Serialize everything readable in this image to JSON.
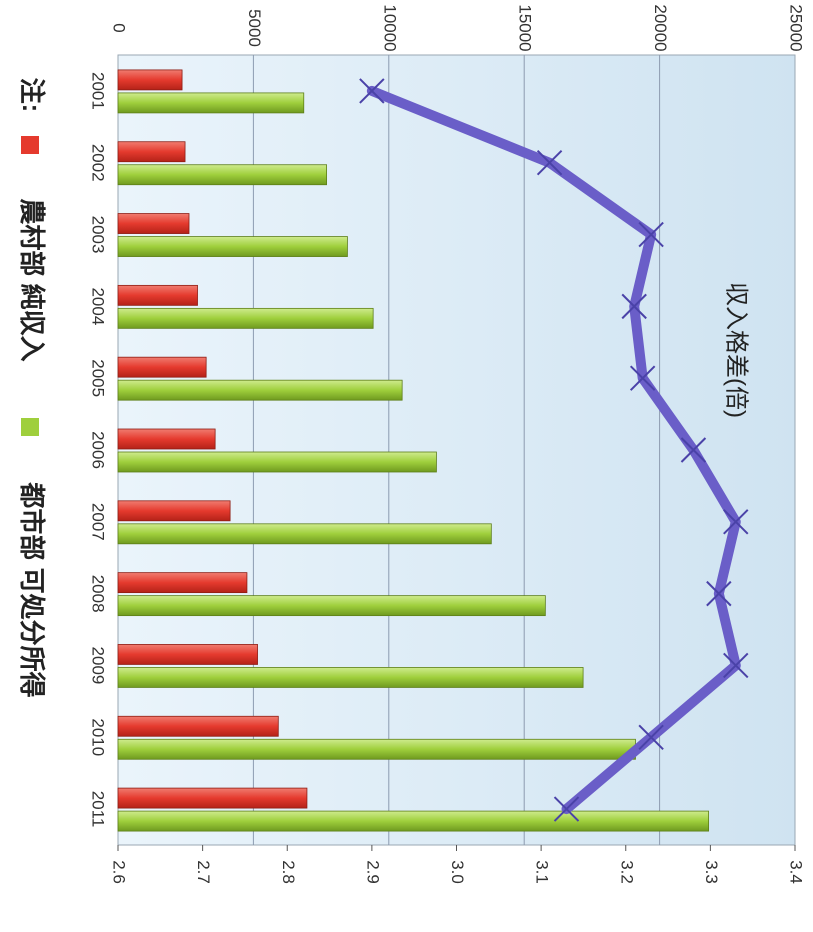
{
  "chart_data": {
    "type": "bar",
    "categories": [
      "2001",
      "2002",
      "2003",
      "2004",
      "2005",
      "2006",
      "2007",
      "2008",
      "2009",
      "2010",
      "2011"
    ],
    "series": [
      {
        "name": "農村部 純収入",
        "axis": "primary",
        "color": "#e53a2e",
        "values": [
          2366,
          2476,
          2622,
          2936,
          3255,
          3587,
          4140,
          4761,
          5153,
          5919,
          6977
        ]
      },
      {
        "name": "都市部 可処分所得",
        "axis": "primary",
        "color": "#9fcf3c",
        "values": [
          6860,
          7703,
          8472,
          9422,
          10493,
          11759,
          13786,
          15781,
          17175,
          19109,
          21810
        ]
      },
      {
        "name": "収入格差(倍)",
        "axis": "secondary",
        "type": "line",
        "color": "#6a5ec8",
        "values": [
          2.9,
          3.11,
          3.23,
          3.21,
          3.22,
          3.28,
          3.33,
          3.31,
          3.33,
          3.23,
          3.13
        ]
      }
    ],
    "primary_axis": {
      "range": [
        0,
        25000
      ],
      "ticks": [
        "0",
        "5000",
        "10000",
        "15000",
        "20000",
        "25000"
      ]
    },
    "secondary_axis": {
      "range": [
        2.6,
        3.4
      ],
      "ticks": [
        "2.6",
        "2.7",
        "2.8",
        "2.9",
        "3.0",
        "3.1",
        "3.2",
        "3.3",
        "3.4"
      ]
    },
    "line_label": "収入格差(倍)",
    "legend": {
      "prefix": "注:",
      "items": [
        "農村部 純収入",
        "都市部 可処分所得"
      ],
      "placement": "bottom"
    },
    "grid": true,
    "orientation": "rotated-90-clockwise"
  }
}
